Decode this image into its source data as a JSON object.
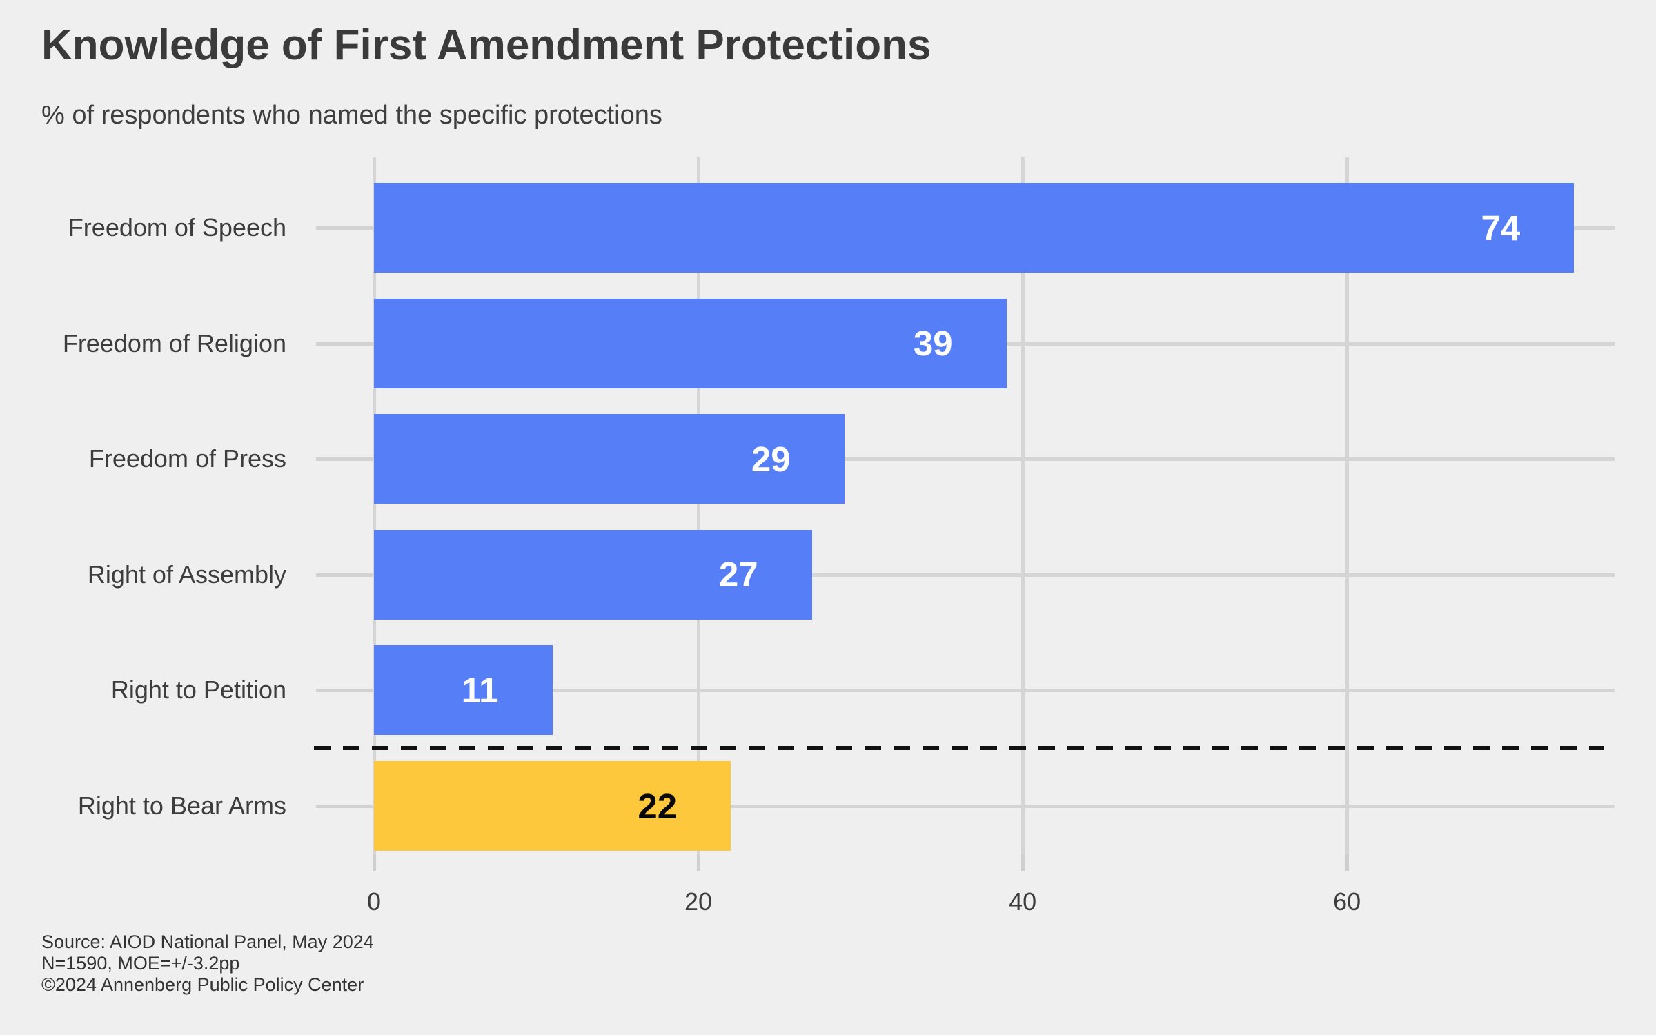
{
  "chart_data": {
    "type": "bar",
    "orientation": "horizontal",
    "title": "Knowledge of First Amendment Protections",
    "subtitle": "% of respondents who named the specific protections",
    "categories": [
      "Freedom of Speech",
      "Freedom of Religion",
      "Freedom of Press",
      "Right of Assembly",
      "Right to Petition",
      "Right to Bear Arms"
    ],
    "values": [
      74,
      39,
      29,
      27,
      11,
      22
    ],
    "bar_colors": [
      "#567FF7",
      "#567FF7",
      "#567FF7",
      "#567FF7",
      "#567FF7",
      "#FDC83C"
    ],
    "value_label_colors": [
      "#FFFFFF",
      "#FFFFFF",
      "#FFFFFF",
      "#FFFFFF",
      "#FFFFFF",
      "#0A0A0A"
    ],
    "x_ticks": [
      0,
      20,
      40,
      60
    ],
    "xlim": [
      0,
      76.5
    ],
    "grid": true,
    "legend": "none",
    "separator_after_index": 4,
    "source_lines": [
      "Source: AIOD National Panel, May 2024",
      "N=1590, MOE=+/-3.2pp",
      "©2024 Annenberg Public Policy Center"
    ]
  },
  "colors": {
    "background": "#EFEFEF",
    "gridline": "#D5D5D5",
    "tick": "#CFCFCF",
    "bar_primary": "#567FF7",
    "bar_highlight": "#FDC83C",
    "title_text": "#3A3A3A",
    "label_text": "#3D3D3D",
    "separator": "#111111"
  }
}
